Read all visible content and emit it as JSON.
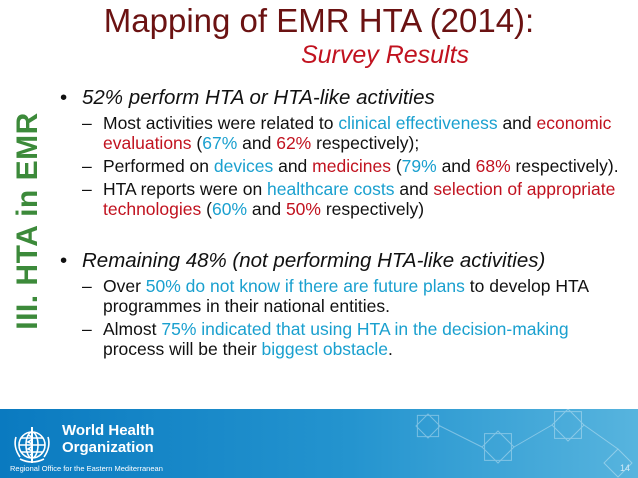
{
  "title": "Mapping of EMR HTA (2014):",
  "subtitle": "Survey Results",
  "side_label": "III. HTA in EMR",
  "bullet_symbol": "•",
  "dash_symbol": "–",
  "bullet1": {
    "text": "52% perform HTA or HTA-like activities"
  },
  "sub1": {
    "a": "Most activities were related to ",
    "b": "clinical effectiveness",
    "c": " and ",
    "d": "economic evaluations",
    "e": " (",
    "f": "67%",
    "g": " and ",
    "h": "62%",
    "i": " respectively);"
  },
  "sub2": {
    "a": "Performed on ",
    "b": "devices",
    "c": " and ",
    "d": "medicines",
    "e": " (",
    "f": "79%",
    "g": " and ",
    "h": "68%",
    "i": " respectively)."
  },
  "sub3": {
    "a": "HTA reports were on ",
    "b": "healthcare costs",
    "c": " and ",
    "d": "selection of appropriate technologies",
    "e": " (",
    "f": "60%",
    "g": " and ",
    "h": "50%",
    "i": " respectively)"
  },
  "bullet2": {
    "text": "Remaining 48% (not performing HTA-like activities)"
  },
  "sub4": {
    "a": "Over ",
    "b": "50% do not know if there are future plans",
    "c": " to develop HTA programmes in their national entities."
  },
  "sub5": {
    "a": "Almost ",
    "b": "75% indicated that using HTA in the decision-making",
    "c": " process will be their ",
    "d": "biggest obstacle",
    "e": "."
  },
  "footer": {
    "org_line1": "World Health",
    "org_line2": "Organization",
    "region": "Regional Office for the Eastern Mediterranean",
    "page_number": "14"
  },
  "colors": {
    "title": "#6b1212",
    "highlight_blue": "#1aa0cf",
    "highlight_red": "#c1121f",
    "side_green": "#3c8a3a",
    "footer_blue": "#0a7ac0"
  },
  "icons": [
    "who-emblem-icon"
  ]
}
